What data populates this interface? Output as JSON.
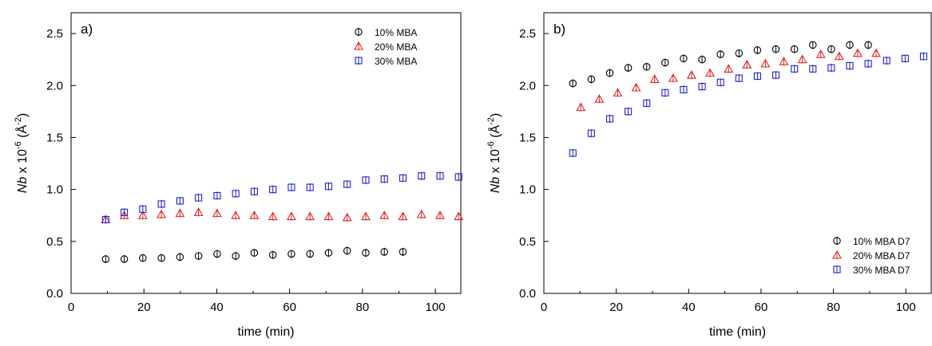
{
  "chart_data": [
    {
      "type": "scatter",
      "panel_label": "a)",
      "xlabel": "time (min)",
      "ylabel": {
        "italic": "Nb",
        "text": " x 10",
        "exp": "-6",
        "unit_open": "(",
        "unit_main": "Å",
        "unit_exp": "-2",
        "unit_close": ")"
      },
      "xlim": [
        0,
        107
      ],
      "ylim": [
        0,
        2.7
      ],
      "xticks": [
        0,
        20,
        40,
        60,
        80,
        100
      ],
      "yticks": [
        "0.0",
        "0.5",
        "1.0",
        "1.5",
        "2.0",
        "2.5"
      ],
      "legend_position": "top-right",
      "series": [
        {
          "name": "10% MBA",
          "marker": "circle",
          "color": "#000000",
          "x": [
            9.5,
            14.6,
            19.7,
            24.8,
            29.9,
            35.0,
            40.1,
            45.2,
            50.3,
            55.4,
            60.5,
            65.6,
            70.7,
            75.8,
            80.9,
            86.0,
            91.1
          ],
          "y": [
            0.33,
            0.33,
            0.34,
            0.34,
            0.35,
            0.36,
            0.38,
            0.36,
            0.39,
            0.37,
            0.38,
            0.38,
            0.39,
            0.41,
            0.39,
            0.4,
            0.4
          ]
        },
        {
          "name": "20% MBA",
          "marker": "triangle",
          "color": "#e02020",
          "x": [
            9.5,
            14.6,
            19.7,
            24.8,
            29.9,
            35.0,
            40.1,
            45.2,
            50.3,
            55.4,
            60.5,
            65.6,
            70.7,
            75.8,
            80.9,
            86.0,
            91.1,
            96.2,
            101.3,
            106.4
          ],
          "y": [
            0.71,
            0.75,
            0.75,
            0.76,
            0.77,
            0.78,
            0.77,
            0.75,
            0.75,
            0.74,
            0.74,
            0.74,
            0.74,
            0.73,
            0.74,
            0.75,
            0.74,
            0.76,
            0.75,
            0.74
          ]
        },
        {
          "name": "30% MBA",
          "marker": "square",
          "color": "#2020d0",
          "x": [
            9.5,
            14.6,
            19.7,
            24.8,
            29.9,
            35.0,
            40.1,
            45.2,
            50.3,
            55.4,
            60.5,
            65.6,
            70.7,
            75.8,
            80.9,
            86.0,
            91.1,
            96.2,
            101.3,
            106.4
          ],
          "y": [
            0.71,
            0.78,
            0.81,
            0.86,
            0.89,
            0.92,
            0.94,
            0.96,
            0.98,
            1.0,
            1.02,
            1.02,
            1.03,
            1.05,
            1.09,
            1.1,
            1.11,
            1.13,
            1.13,
            1.12
          ]
        }
      ]
    },
    {
      "type": "scatter",
      "panel_label": "b)",
      "xlabel": "time (min)",
      "ylabel": {
        "italic": "Nb",
        "text": " x 10",
        "exp": "-6",
        "unit_open": "(",
        "unit_main": "Å",
        "unit_exp": "-2",
        "unit_close": ")"
      },
      "xlim": [
        0,
        107
      ],
      "ylim": [
        0,
        2.7
      ],
      "xticks": [
        0,
        20,
        40,
        60,
        80,
        100
      ],
      "yticks": [
        "0.0",
        "0.5",
        "1.0",
        "1.5",
        "2.0",
        "2.5"
      ],
      "legend_position": "bottom-right",
      "series": [
        {
          "name": "10% MBA D7",
          "marker": "circle",
          "color": "#000000",
          "x": [
            8.0,
            13.1,
            18.2,
            23.3,
            28.4,
            33.5,
            38.6,
            43.7,
            48.8,
            53.9,
            59.0,
            64.1,
            69.2,
            74.3,
            79.4,
            84.5,
            89.6
          ],
          "y": [
            2.02,
            2.06,
            2.12,
            2.17,
            2.18,
            2.22,
            2.26,
            2.25,
            2.3,
            2.31,
            2.34,
            2.35,
            2.35,
            2.39,
            2.35,
            2.39,
            2.39
          ]
        },
        {
          "name": "20% MBA D7",
          "marker": "triangle",
          "color": "#e02020",
          "x": [
            10.2,
            15.3,
            20.4,
            25.5,
            30.6,
            35.7,
            40.8,
            45.9,
            51.0,
            56.1,
            61.2,
            66.3,
            71.4,
            76.5,
            81.6,
            86.7,
            91.8
          ],
          "y": [
            1.79,
            1.87,
            1.93,
            1.98,
            2.06,
            2.07,
            2.1,
            2.12,
            2.16,
            2.2,
            2.21,
            2.23,
            2.25,
            2.3,
            2.28,
            2.31,
            2.31
          ]
        },
        {
          "name": "30% MBA D7",
          "marker": "square",
          "color": "#2020d0",
          "x": [
            8.0,
            13.1,
            18.2,
            23.3,
            28.4,
            33.5,
            38.6,
            43.7,
            48.8,
            53.9,
            59.0,
            64.1,
            69.2,
            74.3,
            79.4,
            84.5,
            89.6,
            94.7,
            99.8,
            104.9
          ],
          "y": [
            1.35,
            1.54,
            1.68,
            1.75,
            1.83,
            1.93,
            1.96,
            1.99,
            2.03,
            2.07,
            2.09,
            2.1,
            2.16,
            2.16,
            2.17,
            2.19,
            2.21,
            2.24,
            2.26,
            2.28
          ]
        }
      ]
    }
  ]
}
